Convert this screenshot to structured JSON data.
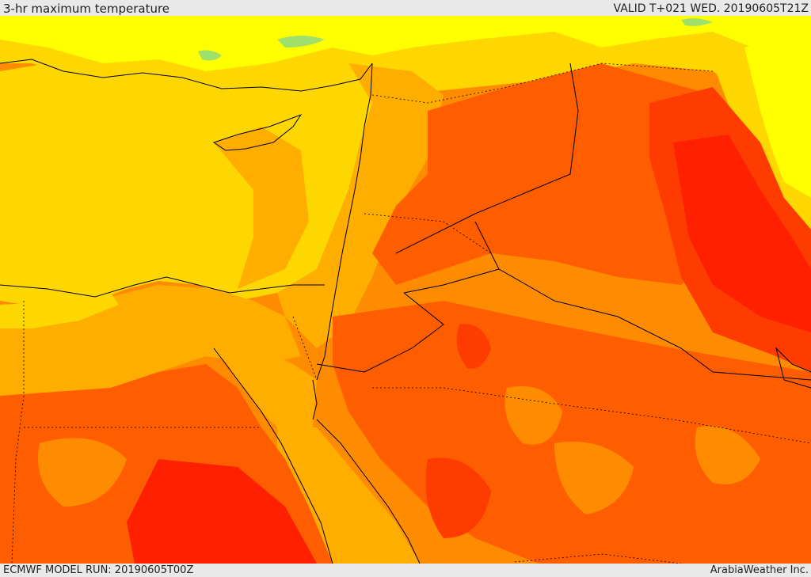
{
  "header": {
    "title": "3-hr maximum temperature",
    "valid": "VALID T+021 WED. 20190605T21Z"
  },
  "footer": {
    "model_run": "ECMWF MODEL RUN: 20190605T00Z",
    "credit": "ArabiaWeather Inc."
  },
  "map": {
    "field": "3-hr maximum temperature",
    "palette": {
      "green": "#9ee06a",
      "yellow": "#ffff00",
      "gold": "#ffd700",
      "amber": "#ffae00",
      "orange": "#ff8c00",
      "dark_orange": "#ff5e00",
      "red_orange": "#ff3c00",
      "red": "#ff2000",
      "borders": "#000000"
    }
  }
}
